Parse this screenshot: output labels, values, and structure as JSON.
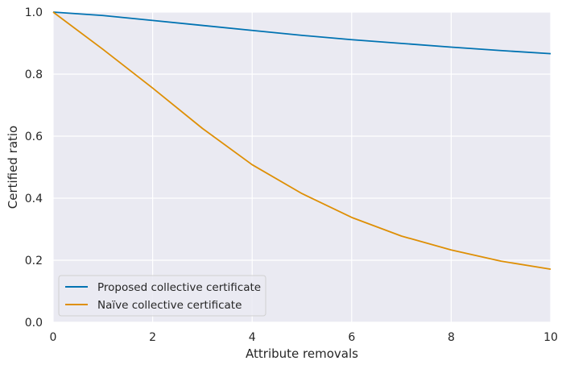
{
  "chart_data": {
    "type": "line",
    "title": "",
    "xlabel": "Attribute removals",
    "ylabel": "Certified ratio",
    "xlim": [
      0,
      10
    ],
    "ylim": [
      0,
      1.0
    ],
    "xticks": [
      0,
      2,
      4,
      6,
      8,
      10
    ],
    "xtick_labels": [
      "0",
      "2",
      "4",
      "6",
      "8",
      "10"
    ],
    "yticks": [
      0,
      0.2,
      0.4,
      0.6,
      0.8,
      1.0
    ],
    "ytick_labels": [
      "0.0",
      "0.2",
      "0.4",
      "0.6",
      "0.8",
      "1.0"
    ],
    "grid": true,
    "legend_position": "lower-left",
    "background_color": "#eaeaf2",
    "grid_color": "#ffffff",
    "series": [
      {
        "name": "Proposed collective certificate",
        "color": "#0173b2",
        "x": [
          0,
          1,
          2,
          3,
          4,
          5,
          6,
          7,
          8,
          9,
          10
        ],
        "y": [
          1.0,
          0.989,
          0.973,
          0.957,
          0.941,
          0.925,
          0.911,
          0.899,
          0.887,
          0.876,
          0.866
        ]
      },
      {
        "name": "Naïve collective certificate",
        "color": "#de8f05",
        "x": [
          0,
          1,
          2,
          3,
          4,
          5,
          6,
          7,
          8,
          9,
          10
        ],
        "y": [
          1.0,
          0.88,
          0.755,
          0.625,
          0.508,
          0.415,
          0.338,
          0.278,
          0.233,
          0.197,
          0.171
        ]
      }
    ]
  }
}
